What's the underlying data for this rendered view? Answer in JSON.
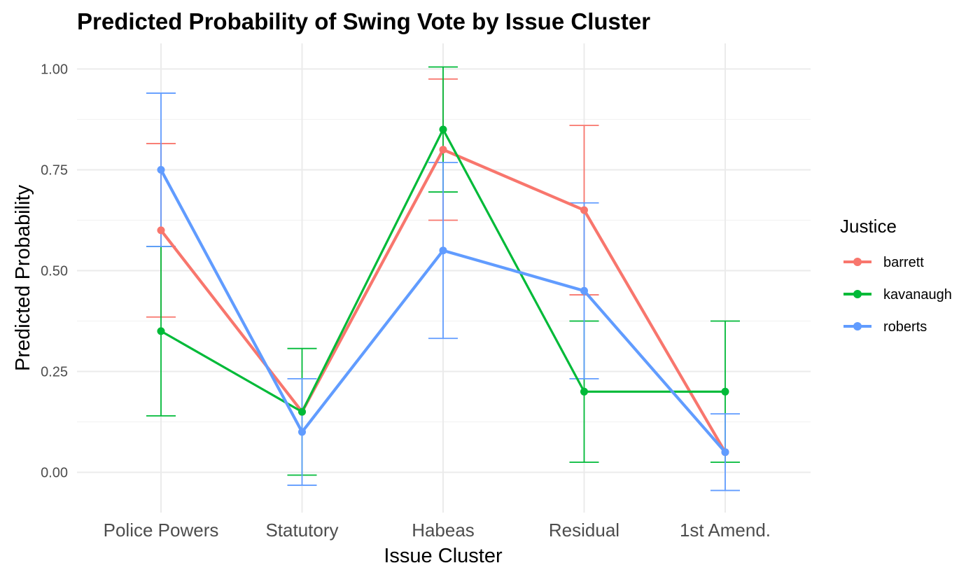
{
  "chart_data": {
    "type": "line",
    "title": "Predicted Probability of Swing Vote by Issue Cluster",
    "xlabel": "Issue Cluster",
    "ylabel": "Predicted Probability",
    "categories": [
      "Police Powers",
      "Statutory",
      "Habeas",
      "Residual",
      "1st Amend."
    ],
    "ylim": [
      -0.09,
      1.05
    ],
    "yticks": [
      0,
      0.25,
      0.5,
      0.75,
      1
    ],
    "ytick_labels": [
      "0.00",
      "0.25",
      "0.50",
      "0.75",
      "1.00"
    ],
    "grid": true,
    "legend": {
      "title": "Justice",
      "position": "right"
    },
    "series": [
      {
        "name": "barrett",
        "color": "#F8766D",
        "values": [
          0.6,
          0.15,
          0.8,
          0.65,
          0.05
        ],
        "lower": [
          0.385,
          0.15,
          0.625,
          0.44,
          0.05
        ],
        "upper": [
          0.815,
          0.15,
          0.975,
          0.86,
          0.05
        ]
      },
      {
        "name": "kavanaugh",
        "color": "#00BA38",
        "values": [
          0.35,
          0.15,
          0.85,
          0.2,
          0.2
        ],
        "lower": [
          0.14,
          -0.007,
          0.695,
          0.025,
          0.025
        ],
        "upper": [
          0.56,
          0.307,
          1.005,
          0.375,
          0.375
        ]
      },
      {
        "name": "roberts",
        "color": "#619CFF",
        "values": [
          0.75,
          0.1,
          0.55,
          0.45,
          0.05
        ],
        "lower": [
          0.56,
          -0.032,
          0.332,
          0.232,
          -0.045
        ],
        "upper": [
          0.94,
          0.232,
          0.768,
          0.668,
          0.145
        ]
      }
    ]
  }
}
